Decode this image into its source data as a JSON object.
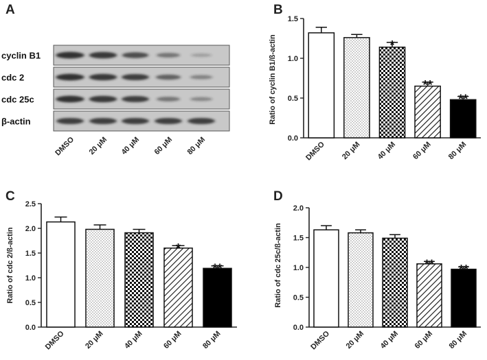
{
  "colors": {
    "axis": "#222222",
    "bar_outline": "#111111",
    "blot_background": "#c8c8c8",
    "band": "#2a2a2a",
    "solid_bar": "#000000"
  },
  "blot": {
    "panel_label": "A",
    "rows": [
      {
        "label": "cyclin B1",
        "intensities": [
          0.95,
          0.9,
          0.75,
          0.45,
          0.15
        ]
      },
      {
        "label": "cdc 2",
        "intensities": [
          0.95,
          0.9,
          0.85,
          0.6,
          0.35
        ]
      },
      {
        "label": "cdc 25c",
        "intensities": [
          0.95,
          0.9,
          0.85,
          0.45,
          0.3
        ]
      },
      {
        "label": "β-actin",
        "intensities": [
          0.85,
          0.85,
          0.85,
          0.85,
          0.85
        ]
      }
    ],
    "lanes": [
      "DMSO",
      "20 μM",
      "40 μM",
      "60 μM",
      "80 μM"
    ]
  },
  "chart_data": [
    {
      "panel": "B",
      "type": "bar",
      "categories": [
        "DMSO",
        "20 μM",
        "40 μM",
        "60 μM",
        "80 μM"
      ],
      "values": [
        1.32,
        1.26,
        1.14,
        0.65,
        0.48
      ],
      "errors": [
        0.07,
        0.04,
        0.06,
        0.05,
        0.04
      ],
      "significance": [
        "",
        "",
        "*",
        "**",
        "**"
      ],
      "patterns": [
        "white",
        "dots",
        "checker",
        "diagonal",
        "solid"
      ],
      "ylabel": "Ratio of cyclin B1/ß-actin",
      "ylim": [
        0,
        1.5
      ],
      "yticks": [
        0.0,
        0.5,
        1.0,
        1.5
      ],
      "ytick_labels": [
        "0.0",
        "0.5",
        "1.0",
        "1.5"
      ]
    },
    {
      "panel": "C",
      "type": "bar",
      "categories": [
        "DMSO",
        "20 μM",
        "40 μM",
        "60 μM",
        "80 μM"
      ],
      "values": [
        2.13,
        1.98,
        1.91,
        1.6,
        1.19
      ],
      "errors": [
        0.1,
        0.09,
        0.07,
        0.05,
        0.05
      ],
      "significance": [
        "",
        "",
        "",
        "*",
        "**"
      ],
      "patterns": [
        "white",
        "dots",
        "checker",
        "diagonal",
        "solid"
      ],
      "ylabel": "Ratio of cdc 2/ß-actin",
      "ylim": [
        0,
        2.5
      ],
      "yticks": [
        0.0,
        0.5,
        1.0,
        1.5,
        2.0,
        2.5
      ],
      "ytick_labels": [
        "0.0",
        "0.5",
        "1.0",
        "1.5",
        "2.0",
        "2.5"
      ]
    },
    {
      "panel": "D",
      "type": "bar",
      "categories": [
        "DMSO",
        "20 μM",
        "40 μM",
        "60 μM",
        "80 μM"
      ],
      "values": [
        1.63,
        1.58,
        1.49,
        1.06,
        0.97
      ],
      "errors": [
        0.07,
        0.05,
        0.06,
        0.04,
        0.04
      ],
      "significance": [
        "",
        "",
        "",
        "**",
        "**"
      ],
      "patterns": [
        "white",
        "dots",
        "checker",
        "diagonal",
        "solid"
      ],
      "ylabel": "Ratio of cdc 25c/ß-actin",
      "ylim": [
        0,
        2.0
      ],
      "yticks": [
        0.0,
        0.5,
        1.0,
        1.5,
        2.0
      ],
      "ytick_labels": [
        "0.0",
        "0.5",
        "1.0",
        "1.5",
        "2.0"
      ]
    }
  ]
}
